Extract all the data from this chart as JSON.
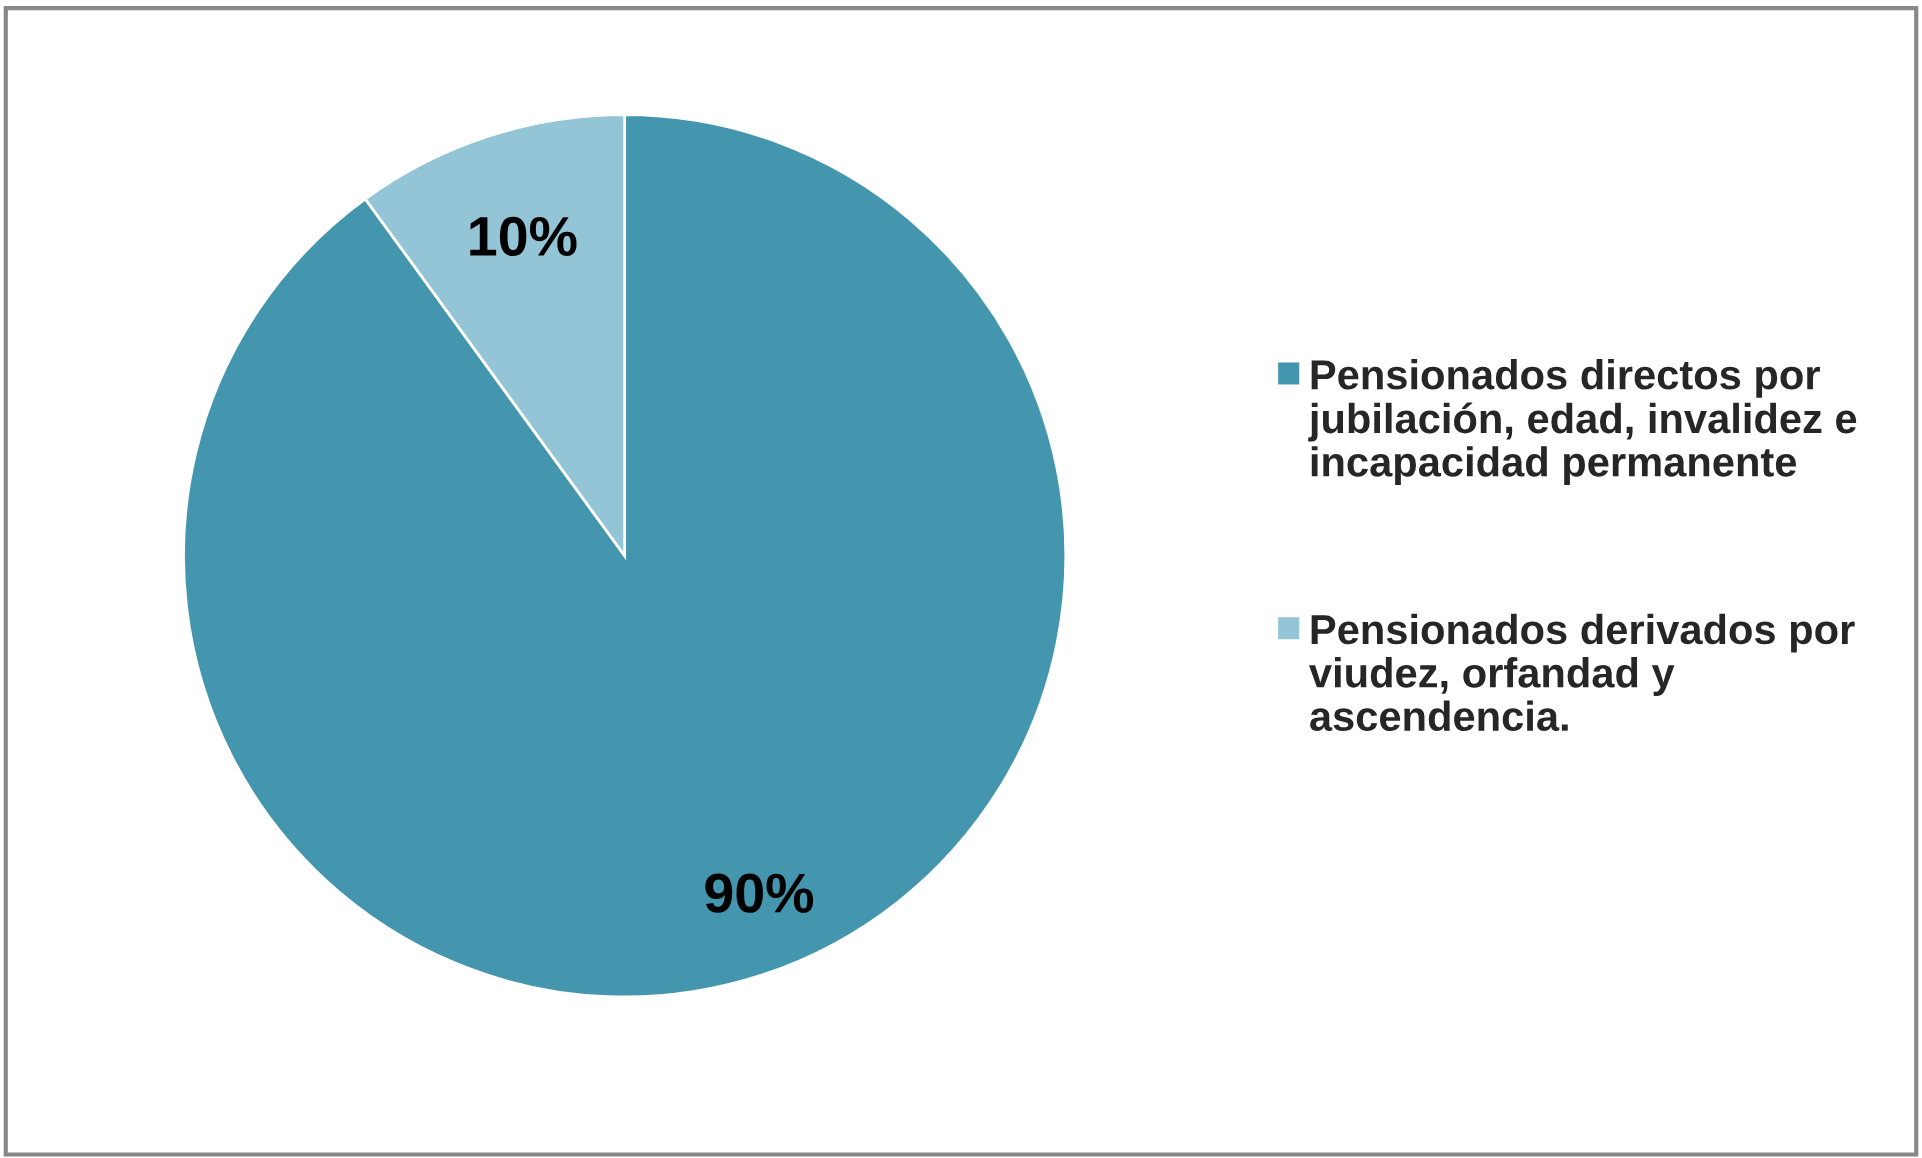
{
  "chart_data": {
    "type": "pie",
    "categories": [
      "Pensionados directos por jubilación, edad, invalidez e incapacidad permanente",
      "Pensionados derivados por viudez, orfandad y ascendencia."
    ],
    "values": [
      90,
      10
    ],
    "colors": [
      "#4496ae",
      "#93c5d6"
    ],
    "value_labels": [
      "90%",
      "10%"
    ],
    "legend": "right"
  }
}
